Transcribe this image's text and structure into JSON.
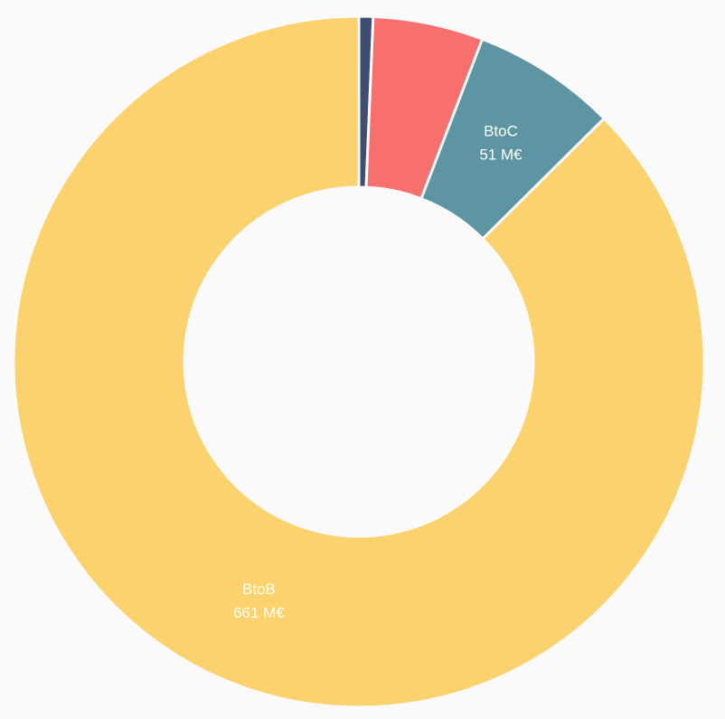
{
  "chart_data": {
    "type": "donut",
    "categories": [
      null,
      null,
      "BtoC",
      "BtoB"
    ],
    "values": [
      5,
      39,
      51,
      661
    ],
    "value_labels": [
      null,
      null,
      "51 M€",
      "661 M€"
    ],
    "colors": [
      "#3f4d72",
      "#f7706e",
      "#5d95a3",
      "#fbd26d"
    ]
  }
}
